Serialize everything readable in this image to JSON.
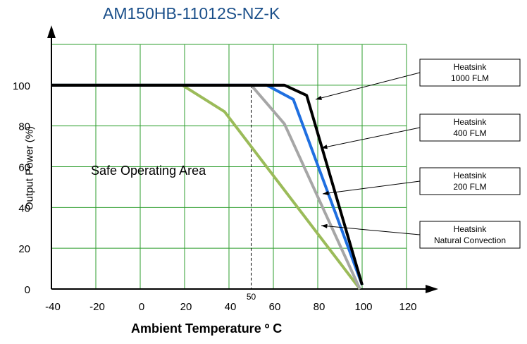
{
  "chart_data": {
    "type": "line",
    "title": "AM150HB-11012S-NZ-K",
    "xlabel": "Ambient Temperature  º C",
    "ylabel": "Output Power (%)",
    "xlim": [
      -40,
      120
    ],
    "ylim": [
      0,
      120
    ],
    "x_ticks": [
      "-40",
      "-20",
      "0",
      "20",
      "40",
      "60",
      "80",
      "100",
      "120"
    ],
    "y_ticks": [
      "0",
      "20",
      "40",
      "60",
      "80",
      "100"
    ],
    "grid": true,
    "annotation_area": "Safe Operating Area",
    "marker_x": 50,
    "marker_label": "50",
    "series": [
      {
        "name": "Heatsink\n1000 FLM",
        "color": "#000000",
        "points": [
          [
            -40,
            100
          ],
          [
            65,
            100
          ],
          [
            75,
            95
          ],
          [
            100,
            2
          ]
        ]
      },
      {
        "name": "Heatsink\n400 FLM",
        "color": "#1f6fe0",
        "points": [
          [
            -40,
            100
          ],
          [
            57,
            100
          ],
          [
            69,
            93
          ],
          [
            100,
            2
          ]
        ]
      },
      {
        "name": "Heatsink\n200 FLM",
        "color": "#a6a6a6",
        "points": [
          [
            -40,
            100
          ],
          [
            50,
            100
          ],
          [
            65,
            81
          ],
          [
            99,
            0
          ]
        ]
      },
      {
        "name": "Heatsink\nNatural Convection",
        "color": "#9bbb59",
        "points": [
          [
            -40,
            100
          ],
          [
            19,
            100
          ],
          [
            38,
            87
          ],
          [
            99,
            0
          ]
        ]
      }
    ],
    "legend_placement": "right"
  }
}
